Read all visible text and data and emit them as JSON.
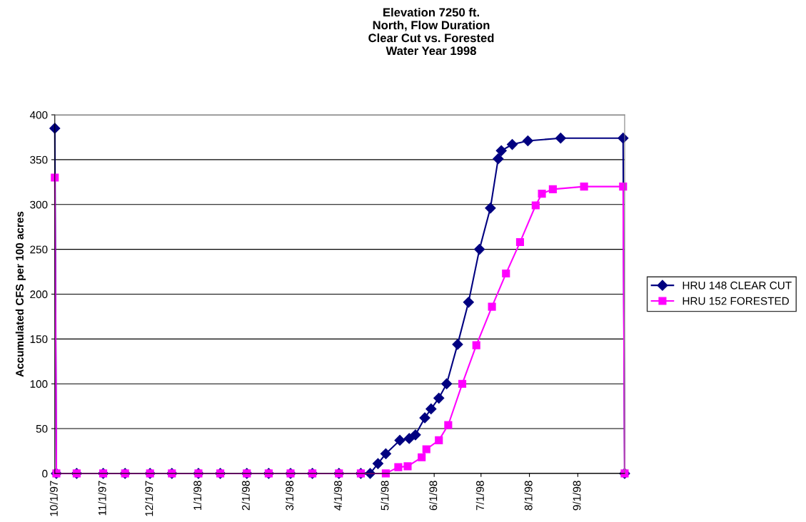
{
  "chart_data": {
    "type": "line",
    "title": "Elevation 7250 ft.\nNorth, Flow Duration\nClear Cut vs. Forested\nWater Year 1998",
    "ylabel": "Accumulated CFS per 100 acres",
    "xlim": [
      "1997-10-01",
      "1998-10-01"
    ],
    "xticks": [
      {
        "value": "1997-10-01",
        "label": "10/1/97"
      },
      {
        "value": "1997-11-01",
        "label": "11/1/97"
      },
      {
        "value": "1997-12-01",
        "label": "12/1/97"
      },
      {
        "value": "1998-01-01",
        "label": "1/1/98"
      },
      {
        "value": "1998-02-01",
        "label": "2/1/98"
      },
      {
        "value": "1998-03-01",
        "label": "3/1/98"
      },
      {
        "value": "1998-04-01",
        "label": "4/1/98"
      },
      {
        "value": "1998-05-01",
        "label": "5/1/98"
      },
      {
        "value": "1998-06-01",
        "label": "6/1/98"
      },
      {
        "value": "1998-07-01",
        "label": "7/1/98"
      },
      {
        "value": "1998-08-01",
        "label": "8/1/98"
      },
      {
        "value": "1998-09-01",
        "label": "9/1/98"
      },
      {
        "value": "1998-10-01",
        "label": null
      }
    ],
    "ylim": [
      0,
      400
    ],
    "yticks": [
      0,
      50,
      100,
      150,
      200,
      250,
      300,
      350,
      400
    ],
    "grid": "y",
    "legend": "right",
    "line_style": "solid",
    "series": [
      {
        "name": "HRU 148 CLEAR CUT",
        "color": "#000080",
        "marker": "diamond",
        "x": [
          "1997-10-01",
          "1997-10-02",
          "1997-10-15",
          "1997-11-01",
          "1997-11-15",
          "1997-12-01",
          "1997-12-15",
          "1998-01-01",
          "1998-01-15",
          "1998-02-01",
          "1998-02-15",
          "1998-03-01",
          "1998-03-15",
          "1998-04-01",
          "1998-04-15",
          "1998-04-21",
          "1998-04-26",
          "1998-05-01",
          "1998-05-10",
          "1998-05-16",
          "1998-05-20",
          "1998-05-26",
          "1998-05-30",
          "1998-06-04",
          "1998-06-09",
          "1998-06-16",
          "1998-06-23",
          "1998-06-30",
          "1998-07-07",
          "1998-07-12",
          "1998-07-14",
          "1998-07-21",
          "1998-07-31",
          "1998-08-21",
          "1998-09-30",
          "1998-10-01"
        ],
        "values": [
          385,
          0,
          0,
          0,
          0,
          0,
          0,
          0,
          0,
          0,
          0,
          0,
          0,
          0,
          0,
          0,
          11,
          22,
          37,
          39,
          43,
          62,
          72,
          84,
          100,
          144,
          191,
          250,
          296,
          351,
          360,
          367,
          371,
          374,
          374,
          0
        ]
      },
      {
        "name": "HRU 152 FORESTED",
        "color": "#ff00ff",
        "marker": "square",
        "x": [
          "1997-10-01",
          "1997-10-02",
          "1997-10-15",
          "1997-11-01",
          "1997-11-15",
          "1997-12-01",
          "1997-12-15",
          "1998-01-01",
          "1998-01-15",
          "1998-02-01",
          "1998-02-15",
          "1998-03-01",
          "1998-03-15",
          "1998-04-01",
          "1998-04-15",
          "1998-05-01",
          "1998-05-09",
          "1998-05-15",
          "1998-05-24",
          "1998-05-27",
          "1998-06-04",
          "1998-06-10",
          "1998-06-19",
          "1998-06-28",
          "1998-07-08",
          "1998-07-17",
          "1998-07-26",
          "1998-08-05",
          "1998-08-09",
          "1998-08-16",
          "1998-09-05",
          "1998-09-30",
          "1998-10-01"
        ],
        "values": [
          330,
          0,
          0,
          0,
          0,
          0,
          0,
          0,
          0,
          0,
          0,
          0,
          0,
          0,
          0,
          0,
          7,
          8,
          18,
          27,
          37,
          54,
          100,
          143,
          186,
          223,
          258,
          299,
          312,
          317,
          320,
          320,
          0
        ]
      }
    ]
  }
}
